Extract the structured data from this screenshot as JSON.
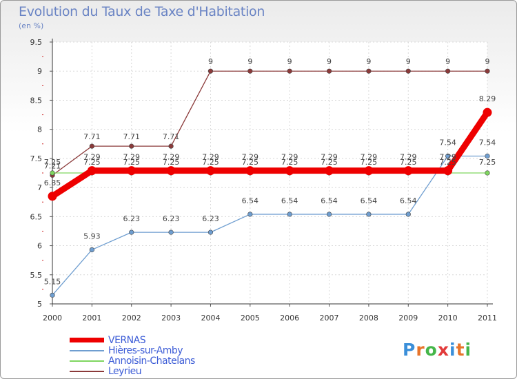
{
  "title": "Evolution du Taux de Taxe d'Habitation",
  "unit": "(en %)",
  "logo": {
    "letters": [
      "P",
      "r",
      "o",
      "x",
      "i",
      "t",
      "i"
    ],
    "colors": [
      "#3b8fd9",
      "#e8742a",
      "#45b649",
      "#e23a3a",
      "#3b8fd9",
      "#e8742a",
      "#45b649"
    ]
  },
  "chart_data": {
    "type": "line",
    "title": "Evolution du Taux de Taxe d'Habitation",
    "ylabel": "(en %)",
    "categories": [
      "2000",
      "2001",
      "2002",
      "2003",
      "2004",
      "2005",
      "2006",
      "2007",
      "2008",
      "2009",
      "2010",
      "2011"
    ],
    "ylim": [
      5,
      9.5
    ],
    "yticks": [
      "5",
      "5.5",
      "6",
      "6.5",
      "7",
      "7.5",
      "8",
      "8.5",
      "9",
      "9.5"
    ],
    "grid": true,
    "series": [
      {
        "name": "VERNAS",
        "color": "#ee0000",
        "values": [
          6.85,
          7.29,
          7.29,
          7.29,
          7.29,
          7.29,
          7.29,
          7.29,
          7.29,
          7.29,
          7.29,
          8.29
        ],
        "labels": [
          "6.85",
          "7.29",
          "7.29",
          "7.29",
          "7.29",
          "7.29",
          "7.29",
          "7.29",
          "7.29",
          "7.29",
          "7.29",
          "8.29"
        ]
      },
      {
        "name": "Hières-sur-Amby",
        "color": "#6f9ed0",
        "values": [
          5.15,
          5.93,
          6.23,
          6.23,
          6.23,
          6.54,
          6.54,
          6.54,
          6.54,
          6.54,
          7.54,
          7.54
        ],
        "labels": [
          "5.15",
          "5.93",
          "6.23",
          "6.23",
          "6.23",
          "6.54",
          "6.54",
          "6.54",
          "6.54",
          "6.54",
          "7.54",
          "7.54"
        ]
      },
      {
        "name": "Annoisin-Chatelans",
        "color": "#7fd65f",
        "values": [
          7.25,
          7.25,
          7.25,
          7.25,
          7.25,
          7.25,
          7.25,
          7.25,
          7.25,
          7.25,
          7.25,
          7.25
        ],
        "labels": [
          "7.25",
          "7.25",
          "7.25",
          "7.25",
          "7.25",
          "7.25",
          "7.25",
          "7.25",
          "7.25",
          "7.25",
          "7.25",
          "7.25"
        ]
      },
      {
        "name": "Leyrieu",
        "color": "#8b3a3a",
        "values": [
          7.21,
          7.71,
          7.71,
          7.71,
          9,
          9,
          9,
          9,
          9,
          9,
          9,
          9
        ],
        "labels": [
          "7.21",
          "7.71",
          "7.71",
          "7.71",
          "9",
          "9",
          "9",
          "9",
          "9",
          "9",
          "9",
          "9"
        ]
      }
    ]
  }
}
